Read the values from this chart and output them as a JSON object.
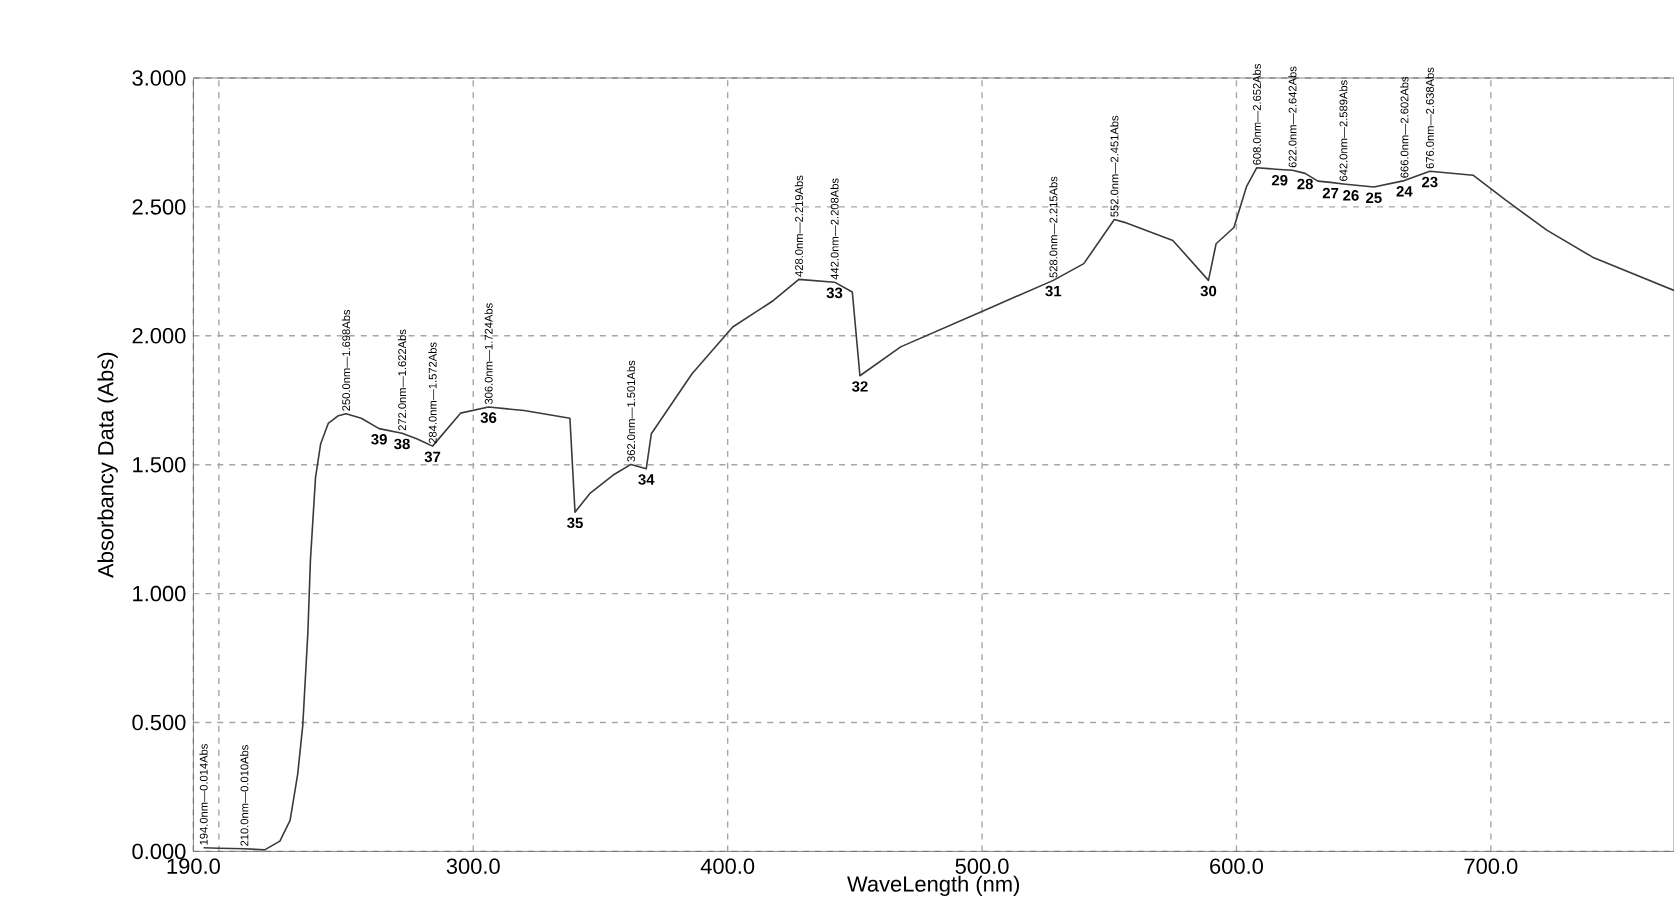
{
  "chart_data": {
    "type": "line",
    "xlabel": "WaveLength (nm)",
    "ylabel": "Absorbancy Data (Abs)",
    "color": "#3a3a3a",
    "line_style": "solid",
    "grid": true,
    "x": [
      194,
      200,
      210,
      218,
      224,
      228,
      231,
      233,
      235,
      236,
      238,
      240,
      243,
      247,
      250,
      256,
      263,
      272,
      278,
      284,
      295,
      306,
      320,
      338,
      340,
      346,
      355,
      362,
      368,
      370,
      386,
      402,
      418,
      428,
      442,
      449,
      452,
      468,
      504,
      528,
      540,
      552,
      556,
      575,
      589,
      592,
      599,
      604,
      608,
      617,
      622,
      627,
      632,
      637,
      642,
      645,
      654,
      666,
      676,
      693,
      706,
      722,
      740,
      772
    ],
    "values": [
      0.014,
      0.012,
      0.01,
      0.006,
      0.04,
      0.12,
      0.3,
      0.49,
      0.85,
      1.13,
      1.45,
      1.58,
      1.66,
      1.69,
      1.698,
      1.68,
      1.64,
      1.622,
      1.6,
      1.572,
      1.7,
      1.724,
      1.71,
      1.68,
      1.316,
      1.39,
      1.46,
      1.501,
      1.484,
      1.62,
      1.853,
      2.034,
      2.137,
      2.219,
      2.208,
      2.17,
      1.845,
      1.957,
      2.112,
      2.215,
      2.28,
      2.451,
      2.44,
      2.37,
      2.215,
      2.357,
      2.42,
      2.58,
      2.652,
      2.645,
      2.642,
      2.63,
      2.6,
      2.595,
      2.589,
      2.586,
      2.577,
      2.602,
      2.638,
      2.623,
      2.525,
      2.41,
      2.305,
      2.176
    ],
    "xlim": [
      190,
      772
    ],
    "ylim": [
      0,
      3
    ],
    "xticks": [
      {
        "value": 190,
        "label": "190.0"
      },
      {
        "value": 200,
        "label": null
      },
      {
        "value": 300,
        "label": "300.0"
      },
      {
        "value": 400,
        "label": "400.0"
      },
      {
        "value": 500,
        "label": "500.0"
      },
      {
        "value": 600,
        "label": "600.0"
      },
      {
        "value": 700,
        "label": "700.0"
      }
    ],
    "yticks": [
      {
        "value": 0,
        "label": "0.000"
      },
      {
        "value": 0.5,
        "label": "0.500"
      },
      {
        "value": 1,
        "label": "1.000"
      },
      {
        "value": 1.5,
        "label": "1.500"
      },
      {
        "value": 2,
        "label": "2.000"
      },
      {
        "value": 2.5,
        "label": "2.500"
      },
      {
        "value": 3,
        "label": "3.000"
      }
    ],
    "annotations": [
      {
        "text": "194.0nm—0.014Abs",
        "x": 194,
        "y": 0.014
      },
      {
        "text": "210.0nm—0.010Abs",
        "x": 210,
        "y": 0.01
      },
      {
        "text": "250.0nm—1.698Abs",
        "x": 250,
        "y": 1.698
      },
      {
        "text": "272.0nm—1.622Abs",
        "x": 272,
        "y": 1.622
      },
      {
        "text": "284.0nm—1.572Abs",
        "x": 284,
        "y": 1.572
      },
      {
        "text": "306.0nm—1.724Abs",
        "x": 306,
        "y": 1.724
      },
      {
        "text": "362.0nm—1.501Abs",
        "x": 362,
        "y": 1.501
      },
      {
        "text": "428.0nm—2.219Abs",
        "x": 428,
        "y": 2.219
      },
      {
        "text": "442.0nm—2.208Abs",
        "x": 442,
        "y": 2.208
      },
      {
        "text": "528.0nm—2.215Abs",
        "x": 528,
        "y": 2.215
      },
      {
        "text": "552.0nm—2.451Abs",
        "x": 552,
        "y": 2.451
      },
      {
        "text": "608.0nm—2.652Abs",
        "x": 608,
        "y": 2.652
      },
      {
        "text": "622.0nm—2.642Abs",
        "x": 622,
        "y": 2.642
      },
      {
        "text": "642.0nm—2.589Abs",
        "x": 642,
        "y": 2.589
      },
      {
        "text": "666.0nm—2.602Abs",
        "x": 666,
        "y": 2.602
      },
      {
        "text": "676.0nm—2.638Abs",
        "x": 676,
        "y": 2.638
      },
      {
        "text": "39",
        "x": 263,
        "y": 1.64
      },
      {
        "text": "38",
        "x": 272,
        "y": 1.622
      },
      {
        "text": "37",
        "x": 284,
        "y": 1.572
      },
      {
        "text": "36",
        "x": 306,
        "y": 1.724
      },
      {
        "text": "35",
        "x": 340,
        "y": 1.316
      },
      {
        "text": "34",
        "x": 368,
        "y": 1.484
      },
      {
        "text": "33",
        "x": 442,
        "y": 2.208
      },
      {
        "text": "32",
        "x": 452,
        "y": 1.845
      },
      {
        "text": "31",
        "x": 528,
        "y": 2.215
      },
      {
        "text": "30",
        "x": 589,
        "y": 2.215
      },
      {
        "text": "29",
        "x": 617,
        "y": 2.645
      },
      {
        "text": "28",
        "x": 627,
        "y": 2.63
      },
      {
        "text": "27",
        "x": 637,
        "y": 2.595
      },
      {
        "text": "26",
        "x": 645,
        "y": 2.586
      },
      {
        "text": "25",
        "x": 654,
        "y": 2.577
      },
      {
        "text": "24",
        "x": 666,
        "y": 2.602
      },
      {
        "text": "23",
        "x": 676,
        "y": 2.638
      }
    ]
  }
}
